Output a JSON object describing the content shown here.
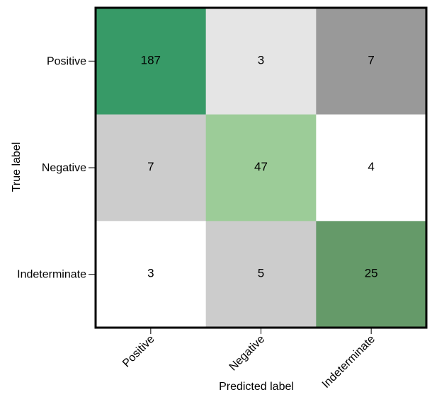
{
  "chart_data": {
    "type": "heatmap",
    "title": "",
    "xlabel": "Predicted label",
    "ylabel": "True label",
    "x_categories": [
      "Positive",
      "Negative",
      "Indeterminate"
    ],
    "y_categories": [
      "Positive",
      "Negative",
      "Indeterminate"
    ],
    "values": [
      [
        187,
        3,
        7
      ],
      [
        7,
        47,
        4
      ],
      [
        3,
        5,
        25
      ]
    ],
    "cell_colors": [
      [
        "#379a67",
        "#e5e5e5",
        "#999999"
      ],
      [
        "#cccccc",
        "#9ccc98",
        "#ffffff"
      ],
      [
        "#ffffff",
        "#cccccc",
        "#659a69"
      ]
    ],
    "grid": false,
    "legend": "none"
  }
}
